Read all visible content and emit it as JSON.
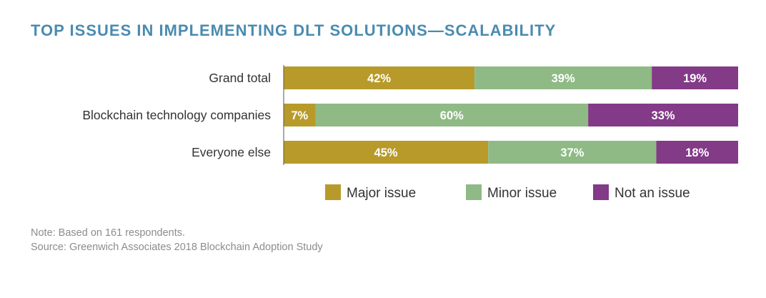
{
  "title": "TOP ISSUES IN IMPLEMENTING DLT SOLUTIONS—SCALABILITY",
  "note": "Note: Based on 161 respondents.",
  "source": "Source: Greenwich Associates 2018 Blockchain Adoption Study",
  "chart_data": {
    "type": "bar",
    "orientation": "horizontal",
    "stacked": true,
    "value_unit": "%",
    "xlim": [
      0,
      100
    ],
    "grid": false,
    "legend_position": "bottom-right",
    "categories": [
      "Grand total",
      "Blockchain technology companies",
      "Everyone else"
    ],
    "series": [
      {
        "name": "Major issue",
        "color": "#b89a2a",
        "values": [
          42,
          7,
          45
        ]
      },
      {
        "name": "Minor issue",
        "color": "#8fba85",
        "values": [
          39,
          60,
          37
        ]
      },
      {
        "name": "Not an issue",
        "color": "#833a87",
        "values": [
          19,
          33,
          18
        ]
      }
    ]
  }
}
